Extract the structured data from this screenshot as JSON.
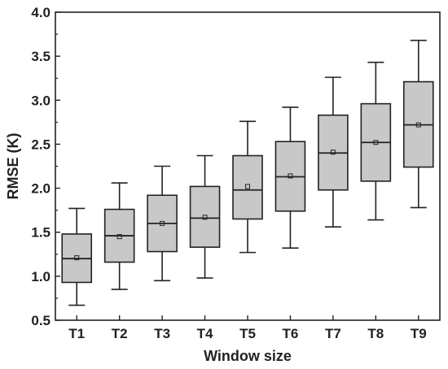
{
  "chart_data": {
    "type": "box",
    "title": "",
    "xlabel": "Window size",
    "ylabel": "RMSE (K)",
    "ylim": [
      0.5,
      4.0
    ],
    "yticks": [
      "0.5",
      "1.0",
      "1.5",
      "2.0",
      "2.5",
      "3.0",
      "3.5",
      "4.0"
    ],
    "categories": [
      "T1",
      "T2",
      "T3",
      "T4",
      "T5",
      "T6",
      "T7",
      "T8",
      "T9"
    ],
    "boxes": [
      {
        "whisker_low": 0.67,
        "q1": 0.93,
        "median": 1.2,
        "q3": 1.48,
        "whisker_high": 1.77,
        "mean": 1.21
      },
      {
        "whisker_low": 0.85,
        "q1": 1.16,
        "median": 1.46,
        "q3": 1.76,
        "whisker_high": 2.06,
        "mean": 1.45
      },
      {
        "whisker_low": 0.95,
        "q1": 1.28,
        "median": 1.6,
        "q3": 1.92,
        "whisker_high": 2.25,
        "mean": 1.6
      },
      {
        "whisker_low": 0.98,
        "q1": 1.33,
        "median": 1.66,
        "q3": 2.02,
        "whisker_high": 2.37,
        "mean": 1.67
      },
      {
        "whisker_low": 1.27,
        "q1": 1.65,
        "median": 1.98,
        "q3": 2.37,
        "whisker_high": 2.76,
        "mean": 2.02
      },
      {
        "whisker_low": 1.32,
        "q1": 1.74,
        "median": 2.13,
        "q3": 2.53,
        "whisker_high": 2.92,
        "mean": 2.14
      },
      {
        "whisker_low": 1.56,
        "q1": 1.98,
        "median": 2.4,
        "q3": 2.83,
        "whisker_high": 3.26,
        "mean": 2.41
      },
      {
        "whisker_low": 1.64,
        "q1": 2.08,
        "median": 2.52,
        "q3": 2.96,
        "whisker_high": 3.43,
        "mean": 2.52
      },
      {
        "whisker_low": 1.78,
        "q1": 2.24,
        "median": 2.72,
        "q3": 3.21,
        "whisker_high": 3.68,
        "mean": 2.72
      }
    ],
    "grid": false,
    "legend": "none",
    "colors": {
      "box_fill": "#c8c8c8",
      "stroke": "#222222",
      "background": "#ffffff"
    }
  }
}
